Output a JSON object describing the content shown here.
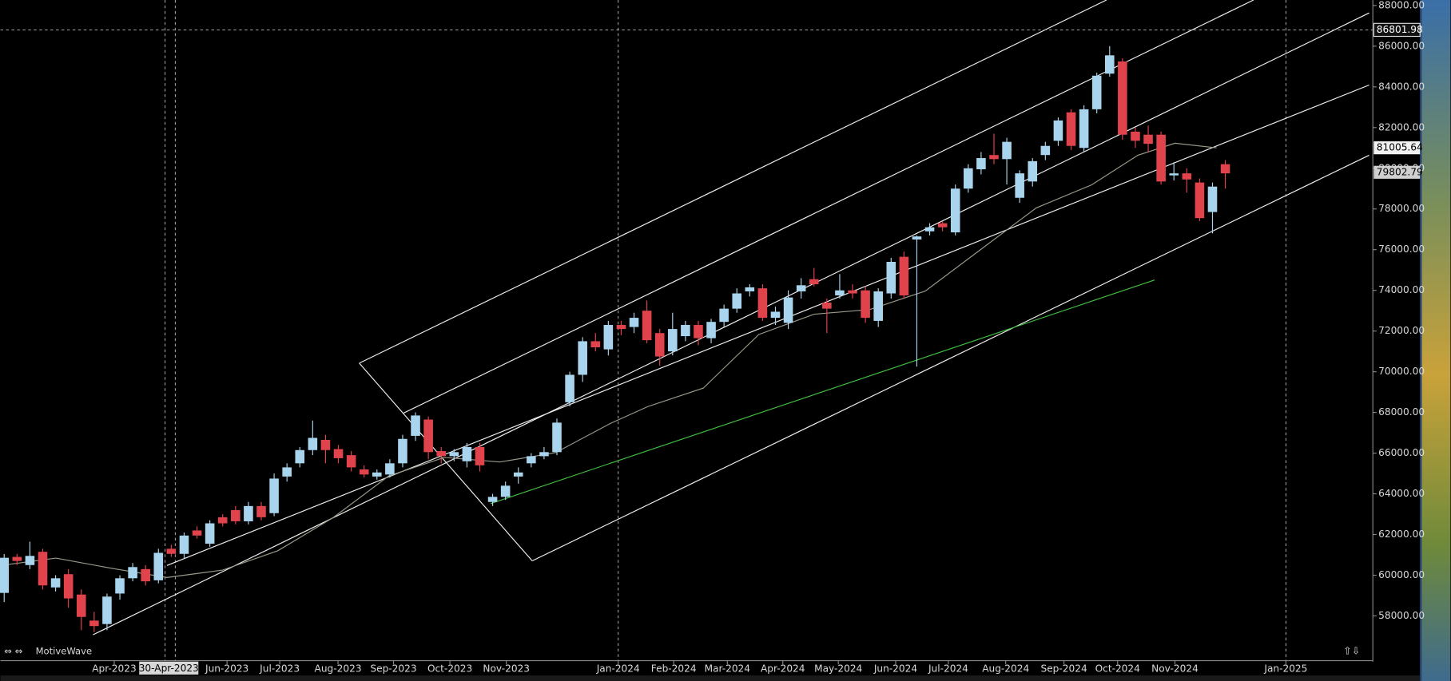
{
  "chart_data": {
    "type": "candlestick",
    "app_name": "MotiveWave",
    "crosshair_date": "30-Apr-2023",
    "crosshair_price": 86801.98,
    "last_prices": [
      81005.64,
      79802.79
    ],
    "up_color": "#a8d4ee",
    "down_color": "#e0434c",
    "x_labels": [
      "Apr-2023",
      "Jun-2023",
      "Jul-2023",
      "Aug-2023",
      "Sep-2023",
      "Oct-2023",
      "Nov-2023",
      "Jan-2024",
      "Feb-2024",
      "Mar-2024",
      "Apr-2024",
      "May-2024",
      "Jun-2024",
      "Jul-2024",
      "Aug-2024",
      "Sep-2024",
      "Oct-2024",
      "Nov-2024",
      "Jan-2025"
    ],
    "ylim": [
      55800,
      88270
    ],
    "yticks": [
      {
        "value": 58000,
        "label": "58000.00"
      },
      {
        "value": 60000,
        "label": "60000.00"
      },
      {
        "value": 62000,
        "label": "62000.00"
      },
      {
        "value": 64000,
        "label": "64000.00"
      },
      {
        "value": 66000,
        "label": "66000.00"
      },
      {
        "value": 68000,
        "label": "68000.00"
      },
      {
        "value": 70000,
        "label": "70000.00"
      },
      {
        "value": 72000,
        "label": "72000.00"
      },
      {
        "value": 74000,
        "label": "74000.00"
      },
      {
        "value": 76000,
        "label": "76000.00"
      },
      {
        "value": 78000,
        "label": "78000.00"
      },
      {
        "value": 80000,
        "label": "80000.00"
      },
      {
        "value": 82000,
        "label": "82000.00"
      },
      {
        "value": 84000,
        "label": "84000.00"
      },
      {
        "value": 86000,
        "label": "86000.00"
      },
      {
        "value": 88000,
        "label": "88000.00"
      }
    ],
    "open": [
      59130,
      60900,
      60500,
      61150,
      59400,
      60050,
      59050,
      57770,
      57600,
      59100,
      59850,
      60300,
      59750,
      61300,
      61050,
      62200,
      61550,
      62850,
      63200,
      62650,
      63400,
      63050,
      64850,
      65500,
      66150,
      66650,
      66200,
      65900,
      65200,
      64850,
      64950,
      65500,
      66850,
      67650,
      66100,
      65850,
      65600,
      66300,
      63600,
      63850,
      64850,
      65500,
      65850,
      66050,
      68500,
      69850,
      71500,
      71100,
      72300,
      72200,
      73000,
      71900,
      71000,
      71750,
      72300,
      71650,
      72450,
      73100,
      73950,
      74100,
      72650,
      72400,
      73950,
      74550,
      73400,
      73750,
      74000,
      74000,
      72500,
      73850,
      75650,
      76500,
      76900,
      77300,
      76850,
      79000,
      79950,
      80650,
      80450,
      78550,
      79350,
      80650,
      81350,
      82750,
      81000,
      82900,
      84650,
      85250,
      81800,
      81650,
      81650,
      79650,
      79750,
      79300,
      77850,
      80200
    ],
    "high": [
      61040,
      61050,
      61650,
      61300,
      60000,
      60300,
      59300,
      58200,
      59100,
      60000,
      60600,
      60500,
      61300,
      61500,
      62100,
      62400,
      62700,
      63000,
      63400,
      63600,
      63600,
      65000,
      65500,
      66300,
      67600,
      66900,
      66400,
      66100,
      65400,
      65200,
      65700,
      66900,
      68000,
      67800,
      66300,
      66200,
      66500,
      66500,
      64000,
      64600,
      65300,
      66000,
      66300,
      67700,
      70000,
      71700,
      71900,
      72500,
      72500,
      72900,
      73500,
      72100,
      72900,
      72500,
      72500,
      72600,
      73300,
      74100,
      74300,
      74300,
      73200,
      74000,
      74600,
      75100,
      73600,
      74800,
      74300,
      74200,
      74100,
      75600,
      75900,
      76700,
      77300,
      77400,
      79200,
      80200,
      80800,
      81700,
      81500,
      79900,
      80500,
      81300,
      82500,
      82900,
      83100,
      84700,
      86000,
      85400,
      82000,
      82100,
      81800,
      80300,
      80000,
      79500,
      79300,
      80400
    ],
    "low": [
      58680,
      60500,
      60300,
      59300,
      59200,
      58400,
      57300,
      57200,
      57300,
      58800,
      59700,
      59500,
      59600,
      60900,
      60800,
      61800,
      61400,
      62400,
      62500,
      62500,
      62700,
      62900,
      64600,
      65300,
      65900,
      65500,
      65500,
      65100,
      64800,
      64700,
      64800,
      65300,
      66600,
      65700,
      65500,
      65600,
      65300,
      65100,
      63400,
      63700,
      64500,
      65300,
      65700,
      65900,
      68300,
      69500,
      71000,
      70800,
      71800,
      71900,
      71400,
      70300,
      70800,
      71500,
      71300,
      71400,
      72200,
      72900,
      73700,
      72500,
      72300,
      72100,
      73600,
      74200,
      71900,
      73600,
      73600,
      72400,
      72200,
      73600,
      73600,
      70250,
      76700,
      76900,
      76700,
      78800,
      79700,
      80200,
      79200,
      78300,
      79100,
      80400,
      81100,
      80900,
      80800,
      82700,
      84500,
      81400,
      81000,
      80800,
      79200,
      79400,
      78800,
      77400,
      76800,
      79000
    ],
    "close": [
      60857,
      60700,
      60950,
      59500,
      59850,
      58860,
      57950,
      57500,
      58950,
      59850,
      60400,
      59700,
      61100,
      61050,
      61950,
      61950,
      62550,
      62550,
      62650,
      63400,
      62850,
      64750,
      65300,
      66150,
      66750,
      66150,
      65750,
      65300,
      64950,
      65050,
      65500,
      66700,
      67850,
      66050,
      65850,
      66050,
      66300,
      65400,
      63850,
      64400,
      65050,
      65850,
      66050,
      67500,
      69850,
      71500,
      71200,
      72300,
      72100,
      72650,
      71550,
      70750,
      72100,
      72300,
      71650,
      72450,
      73100,
      73850,
      74150,
      72650,
      72950,
      73650,
      74250,
      74300,
      73100,
      74000,
      73850,
      72650,
      73950,
      75400,
      73750,
      76650,
      77100,
      77100,
      79000,
      80000,
      80500,
      80450,
      81300,
      79750,
      80350,
      81100,
      82350,
      81100,
      82900,
      84550,
      85550,
      81650,
      81350,
      81200,
      79350,
      79750,
      79450,
      77550,
      79100,
      79750
    ]
  }
}
